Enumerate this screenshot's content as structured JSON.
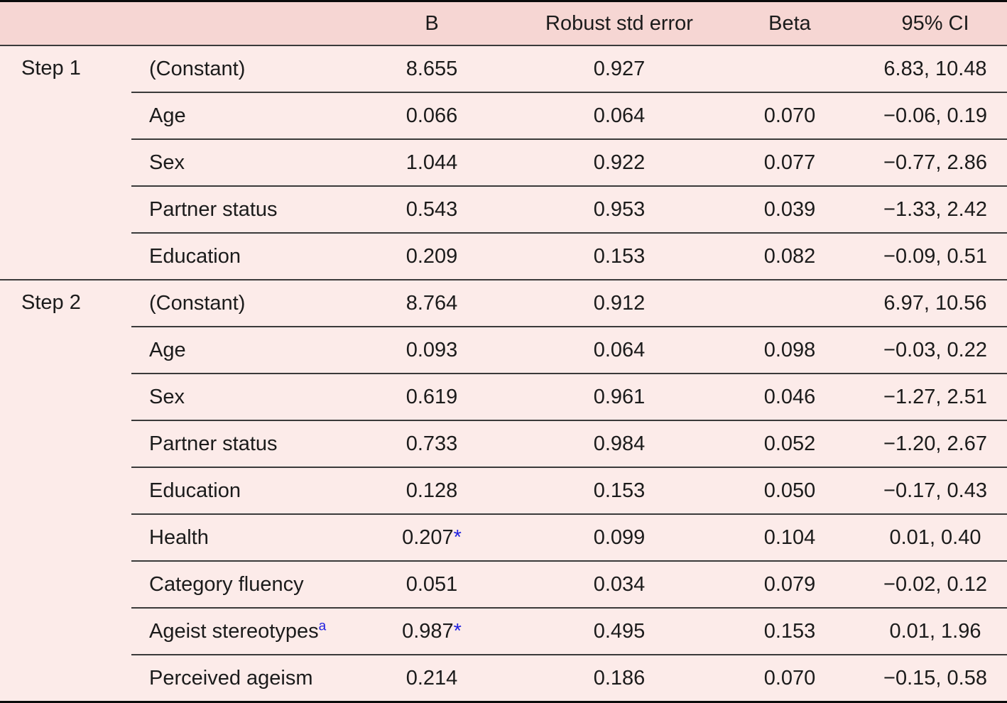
{
  "colors": {
    "header_bg": "#f6d6d3",
    "body_bg": "#fcebe9",
    "rule_dark": "#3a3a3a",
    "outer_border": "#0b0b0b",
    "accent_blue": "#2121e0"
  },
  "table": {
    "header": {
      "step": "",
      "variable": "",
      "b": "B",
      "robust": "Robust std error",
      "beta": "Beta",
      "ci": "95% CI"
    },
    "rows": [
      {
        "step": "Step 1",
        "variable": "(Constant)",
        "b": "8.655",
        "robust": "0.927",
        "beta": "",
        "ci": "6.83, 10.48"
      },
      {
        "variable": "Age",
        "b": "0.066",
        "robust": "0.064",
        "beta": "0.070",
        "ci": "−0.06, 0.19"
      },
      {
        "variable": "Sex",
        "b": "1.044",
        "robust": "0.922",
        "beta": "0.077",
        "ci": "−0.77, 2.86"
      },
      {
        "variable": "Partner status",
        "b": "0.543",
        "robust": "0.953",
        "beta": "0.039",
        "ci": "−1.33, 2.42"
      },
      {
        "variable": "Education",
        "b": "0.209",
        "robust": "0.153",
        "beta": "0.082",
        "ci": "−0.09, 0.51"
      },
      {
        "step": "Step 2",
        "variable": "(Constant)",
        "b": "8.764",
        "robust": "0.912",
        "beta": "",
        "ci": "6.97, 10.56"
      },
      {
        "variable": "Age",
        "b": "0.093",
        "robust": "0.064",
        "beta": "0.098",
        "ci": "−0.03, 0.22"
      },
      {
        "variable": "Sex",
        "b": "0.619",
        "robust": "0.961",
        "beta": "0.046",
        "ci": "−1.27, 2.51"
      },
      {
        "variable": "Partner status",
        "b": "0.733",
        "robust": "0.984",
        "beta": "0.052",
        "ci": "−1.20, 2.67"
      },
      {
        "variable": "Education",
        "b": "0.128",
        "robust": "0.153",
        "beta": "0.050",
        "ci": "−0.17, 0.43"
      },
      {
        "variable": "Health",
        "b": "0.207",
        "b_star": "*",
        "robust": "0.099",
        "beta": "0.104",
        "ci": "0.01, 0.40"
      },
      {
        "variable": "Category fluency",
        "b": "0.051",
        "robust": "0.034",
        "beta": "0.079",
        "ci": "−0.02, 0.12"
      },
      {
        "variable": "Ageist stereotypes",
        "variable_sup": "a",
        "b": "0.987",
        "b_star": "*",
        "robust": "0.495",
        "beta": "0.153",
        "ci": "0.01, 1.96"
      },
      {
        "variable": "Perceived ageism",
        "b": "0.214",
        "robust": "0.186",
        "beta": "0.070",
        "ci": "−0.15, 0.58"
      }
    ]
  }
}
